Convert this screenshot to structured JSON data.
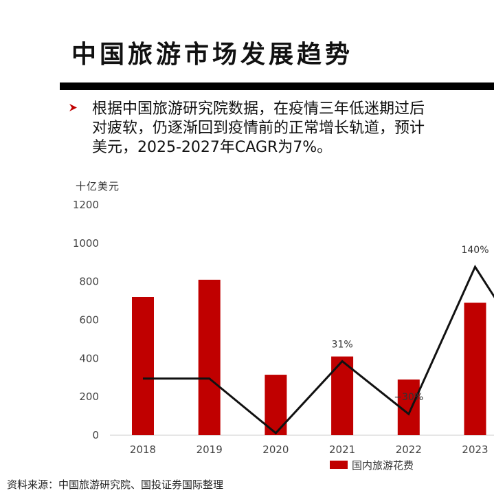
{
  "page": {
    "title": "中国旅游市场发展趋势",
    "description_lines": [
      "根据中国旅游研究院数据，在疫情三年低迷期过后",
      "对疲软，仍逐渐回到疫情前的正常增长轨道，预计",
      "美元，2025-2027年CAGR为7%。"
    ],
    "source": "资料来源：中国旅游研究院、国投证券国际整理",
    "bullet_icon": "arrow-bullet-icon"
  },
  "colors": {
    "bar": "#c00000",
    "line": "#111111",
    "axis": "#cccccc",
    "accent_rule": "#000000"
  },
  "chart_data": {
    "type": "bar",
    "unit_label": "十亿美元",
    "categories": [
      "2018",
      "2019",
      "2020",
      "2021",
      "2022",
      "2023"
    ],
    "ylim": [
      0,
      1200
    ],
    "yticks": [
      0,
      200,
      400,
      600,
      800,
      1000,
      1200
    ],
    "series": [
      {
        "name": "国内旅游花费",
        "type": "bar",
        "values": [
          720,
          810,
          315,
          410,
          290,
          690
        ]
      },
      {
        "type": "line",
        "values": [
          11,
          11,
          -52,
          31,
          -30,
          140
        ],
        "labels": [
          "",
          "",
          "",
          "31%",
          "−30%",
          "140%"
        ]
      }
    ],
    "legend": {
      "position": "bottom",
      "label": "国内旅游花费"
    }
  }
}
